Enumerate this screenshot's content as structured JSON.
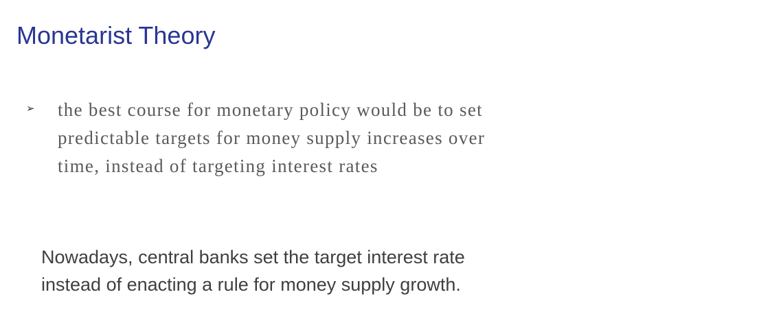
{
  "slide": {
    "title": "Monetarist Theory",
    "title_color": "#2a3593",
    "bullet": {
      "marker": "➢",
      "marker_icon": "arrowhead-bullet-icon",
      "lines": [
        "the best course for monetary policy would be to set",
        "predictable targets for money supply increases over",
        "time, instead of targeting interest rates"
      ]
    },
    "note": {
      "lines": [
        "Nowadays, central banks set the target interest rate",
        "instead of enacting a rule for money supply growth."
      ]
    }
  }
}
